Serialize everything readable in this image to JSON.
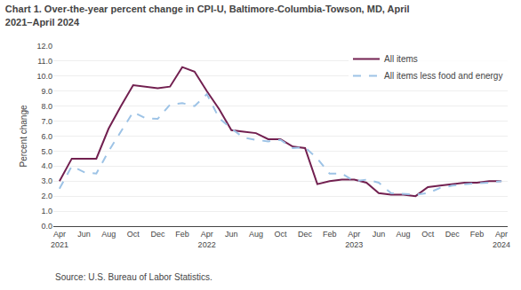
{
  "chart_data": {
    "type": "line",
    "title": "Chart 1. Over-the-year percent change in CPI-U, Baltimore-Columbia-Towson, MD, April\n2021–April 2024",
    "ylabel": "Percent change",
    "annotations": [
      "Source: U.S. Bureau of Labor Statistics."
    ],
    "categories": [
      "Apr\n2021",
      null,
      "Jun",
      null,
      "Aug",
      null,
      "Oct",
      null,
      "Dec",
      null,
      "Feb",
      null,
      "Apr\n2022",
      null,
      "Jun",
      null,
      "Aug",
      null,
      "Oct",
      null,
      "Dec",
      null,
      "Feb",
      null,
      "Apr\n2023",
      null,
      "Jun",
      null,
      "Aug",
      null,
      "Oct",
      null,
      "Dec",
      null,
      "Feb",
      null,
      "Apr\n2024"
    ],
    "series": [
      {
        "name": "All items",
        "color": "#722050",
        "line_style": "solid",
        "values": [
          3.0,
          4.5,
          4.5,
          4.5,
          6.5,
          8.0,
          9.4,
          9.3,
          9.2,
          9.3,
          10.6,
          10.3,
          9.0,
          7.8,
          6.4,
          6.3,
          6.2,
          5.8,
          5.8,
          5.3,
          5.2,
          2.8,
          3.0,
          3.1,
          3.1,
          2.9,
          2.2,
          2.1,
          2.1,
          2.0,
          2.6,
          2.7,
          2.8,
          2.9,
          2.9,
          3.0,
          3.0
        ]
      },
      {
        "name": "All items less food and energy",
        "color": "#9dc3e6",
        "line_style": "dashed",
        "values": [
          2.5,
          4.0,
          3.6,
          3.5,
          5.0,
          6.3,
          7.6,
          7.2,
          7.15,
          8.1,
          8.2,
          8.0,
          8.8,
          7.2,
          6.5,
          5.9,
          5.75,
          5.65,
          5.75,
          5.2,
          5.25,
          4.5,
          3.5,
          3.5,
          3.0,
          3.1,
          2.9,
          2.2,
          2.15,
          2.1,
          2.2,
          2.55,
          2.7,
          2.8,
          2.85,
          2.9,
          3.0
        ]
      }
    ],
    "ylim": [
      0.0,
      12.0
    ],
    "yticks": [
      {
        "value": 0.0,
        "label": "0.0"
      },
      {
        "value": 1.0,
        "label": "1.0"
      },
      {
        "value": 2.0,
        "label": "2.0"
      },
      {
        "value": 3.0,
        "label": "3.0"
      },
      {
        "value": 4.0,
        "label": "4.0"
      },
      {
        "value": 5.0,
        "label": "5.0"
      },
      {
        "value": 6.0,
        "label": "6.0"
      },
      {
        "value": 7.0,
        "label": "7.0"
      },
      {
        "value": 8.0,
        "label": "8.0"
      },
      {
        "value": 9.0,
        "label": "9.0"
      },
      {
        "value": 10.0,
        "label": "10.0"
      },
      {
        "value": 11.0,
        "label": "11.0"
      },
      {
        "value": 12.0,
        "label": "12.0"
      }
    ],
    "grid": "y",
    "legend": "upper right"
  }
}
